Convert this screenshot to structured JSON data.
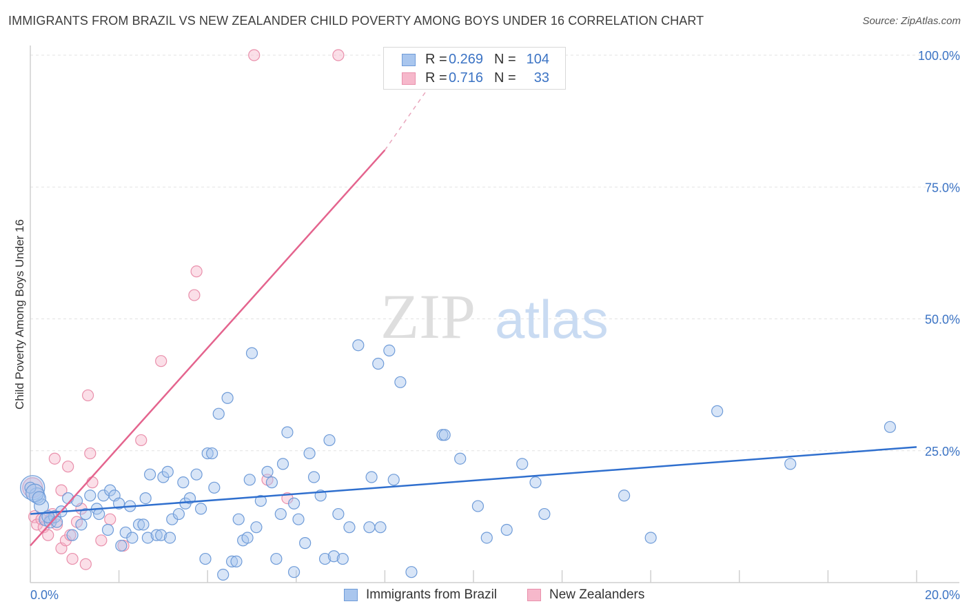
{
  "title": "IMMIGRANTS FROM BRAZIL VS NEW ZEALANDER CHILD POVERTY AMONG BOYS UNDER 16 CORRELATION CHART",
  "source": "Source: ZipAtlas.com",
  "watermark": {
    "zip": "ZIP",
    "atlas": "atlas"
  },
  "colors": {
    "brazil_fill": "#a9c6ee",
    "brazil_stroke": "#6e9bd8",
    "brazil_line": "#2f6fce",
    "nz_fill": "#f6b8cb",
    "nz_stroke": "#e98fab",
    "nz_line": "#e4648e",
    "axis_label": "#3b73c4",
    "grid": "#e2e2e2"
  },
  "legend_top": {
    "rows": [
      {
        "r_label": "R =",
        "r_value": "0.269",
        "n_label": "N =",
        "n_value": "104"
      },
      {
        "r_label": "R =",
        "r_value": "0.716",
        "n_label": "N =",
        "n_value": "33"
      }
    ]
  },
  "chart_data": {
    "type": "scatter",
    "title": "IMMIGRANTS FROM BRAZIL VS NEW ZEALANDER CHILD POVERTY AMONG BOYS UNDER 16 CORRELATION CHART",
    "xlabel": "",
    "ylabel": "Child Poverty Among Boys Under 16",
    "xlim": [
      0,
      20
    ],
    "ylim": [
      0,
      100
    ],
    "x_tick_labels": [
      "0.0%",
      "20.0%"
    ],
    "y_tick_labels": [
      "25.0%",
      "50.0%",
      "75.0%",
      "100.0%"
    ],
    "y_ticks": [
      25,
      50,
      75,
      100
    ],
    "legend": [
      "Immigrants from Brazil",
      "New Zealanders"
    ],
    "series": [
      {
        "name": "Immigrants from Brazil",
        "r": 0.269,
        "n": 104,
        "trend": {
          "x0": 0,
          "y0": 13.0,
          "x1": 20,
          "y1": 25.7
        },
        "points": [
          [
            0.05,
            18.0
          ],
          [
            0.15,
            16.5
          ],
          [
            0.25,
            14.5
          ],
          [
            0.35,
            12.0
          ],
          [
            0.45,
            11.5
          ],
          [
            0.55,
            12.5
          ],
          [
            0.7,
            13.5
          ],
          [
            0.85,
            16.0
          ],
          [
            0.95,
            9.0
          ],
          [
            1.05,
            15.5
          ],
          [
            1.15,
            11.0
          ],
          [
            1.25,
            13.0
          ],
          [
            1.35,
            16.5
          ],
          [
            1.5,
            14.0
          ],
          [
            1.55,
            13.0
          ],
          [
            1.65,
            16.5
          ],
          [
            1.75,
            10.0
          ],
          [
            1.8,
            17.5
          ],
          [
            1.9,
            16.5
          ],
          [
            2.0,
            15.0
          ],
          [
            2.05,
            7.0
          ],
          [
            2.15,
            9.5
          ],
          [
            2.25,
            14.5
          ],
          [
            2.3,
            8.5
          ],
          [
            2.45,
            11.0
          ],
          [
            2.55,
            11.0
          ],
          [
            2.6,
            16.0
          ],
          [
            2.65,
            8.5
          ],
          [
            2.7,
            20.5
          ],
          [
            2.85,
            9.0
          ],
          [
            2.95,
            9.0
          ],
          [
            3.0,
            20.0
          ],
          [
            3.1,
            21.0
          ],
          [
            3.15,
            8.5
          ],
          [
            3.2,
            12.0
          ],
          [
            3.35,
            13.0
          ],
          [
            3.45,
            19.0
          ],
          [
            3.5,
            15.0
          ],
          [
            3.6,
            16.0
          ],
          [
            3.75,
            20.5
          ],
          [
            3.85,
            14.0
          ],
          [
            3.95,
            4.5
          ],
          [
            4.0,
            24.5
          ],
          [
            4.1,
            24.5
          ],
          [
            4.15,
            18.0
          ],
          [
            4.25,
            32.0
          ],
          [
            4.35,
            1.5
          ],
          [
            4.45,
            35.0
          ],
          [
            4.55,
            4.0
          ],
          [
            4.65,
            4.0
          ],
          [
            4.7,
            12.0
          ],
          [
            4.8,
            8.0
          ],
          [
            4.9,
            8.5
          ],
          [
            4.95,
            19.5
          ],
          [
            5.0,
            43.5
          ],
          [
            5.1,
            10.5
          ],
          [
            5.2,
            15.5
          ],
          [
            5.35,
            21.0
          ],
          [
            5.45,
            19.0
          ],
          [
            5.55,
            4.5
          ],
          [
            5.65,
            13.0
          ],
          [
            5.7,
            22.5
          ],
          [
            5.8,
            28.5
          ],
          [
            5.95,
            2.0
          ],
          [
            5.95,
            15.0
          ],
          [
            6.05,
            12.0
          ],
          [
            6.2,
            7.5
          ],
          [
            6.3,
            24.5
          ],
          [
            6.4,
            20.0
          ],
          [
            6.55,
            16.5
          ],
          [
            6.65,
            4.5
          ],
          [
            6.75,
            27.0
          ],
          [
            6.85,
            5.0
          ],
          [
            6.95,
            13.0
          ],
          [
            7.05,
            4.5
          ],
          [
            7.2,
            10.5
          ],
          [
            7.4,
            45.0
          ],
          [
            7.65,
            10.5
          ],
          [
            7.7,
            20.0
          ],
          [
            7.85,
            41.5
          ],
          [
            7.9,
            10.5
          ],
          [
            8.1,
            44.0
          ],
          [
            8.2,
            19.5
          ],
          [
            8.35,
            38.0
          ],
          [
            8.6,
            2.0
          ],
          [
            9.3,
            28.0
          ],
          [
            9.35,
            28.0
          ],
          [
            9.7,
            23.5
          ],
          [
            10.1,
            14.5
          ],
          [
            10.3,
            8.5
          ],
          [
            10.75,
            10.0
          ],
          [
            11.1,
            22.5
          ],
          [
            11.4,
            19.0
          ],
          [
            11.6,
            13.0
          ],
          [
            13.4,
            16.5
          ],
          [
            14.0,
            8.5
          ],
          [
            15.5,
            32.5
          ],
          [
            17.15,
            22.5
          ],
          [
            19.4,
            29.5
          ],
          [
            0.0,
            18.0
          ],
          [
            0.1,
            17.0
          ],
          [
            0.2,
            16.0
          ],
          [
            0.4,
            12.5
          ],
          [
            0.6,
            11.5
          ]
        ],
        "sizes": [
          2.2,
          1.4,
          1.3,
          1.2,
          1.1,
          1.1,
          1.0,
          1.0,
          1.0,
          1.0,
          1.0,
          1.0,
          1.0,
          1.0,
          1.0,
          1.0,
          1.0,
          1.0,
          1.0,
          1.0,
          1.0,
          1.0,
          1.0,
          1.0,
          1.0,
          1.0,
          1.0,
          1.0,
          1.0,
          1.0,
          1.0,
          1.0,
          1.0,
          1.0,
          1.0,
          1.0,
          1.0,
          1.0,
          1.0,
          1.0,
          1.0,
          1.0,
          1.0,
          1.0,
          1.0,
          1.0,
          1.0,
          1.0,
          1.0,
          1.0,
          1.0,
          1.0,
          1.0,
          1.0,
          1.0,
          1.0,
          1.0,
          1.0,
          1.0,
          1.0,
          1.0,
          1.0,
          1.0,
          1.0,
          1.0,
          1.0,
          1.0,
          1.0,
          1.0,
          1.0,
          1.0,
          1.0,
          1.0,
          1.0,
          1.0,
          1.0,
          1.0,
          1.0,
          1.0,
          1.0,
          1.0,
          1.0,
          1.0,
          1.0,
          1.0,
          1.0,
          1.0,
          1.0,
          1.0,
          1.0,
          1.0,
          1.0,
          1.0,
          1.0,
          1.0,
          1.0,
          1.0,
          1.0,
          1.0,
          1.0,
          1.6,
          1.2,
          1.1,
          1.0
        ]
      },
      {
        "name": "New Zealanders",
        "r": 0.716,
        "n": 33,
        "trend": {
          "x0": 0,
          "y0": 7.0,
          "x1": 8.0,
          "y1": 82.0,
          "dash_to_x": 9.5,
          "dash_to_y": 100.0
        },
        "points": [
          [
            0.05,
            18.0
          ],
          [
            0.1,
            12.5
          ],
          [
            0.15,
            11.0
          ],
          [
            0.25,
            12.0
          ],
          [
            0.3,
            10.5
          ],
          [
            0.4,
            9.0
          ],
          [
            0.5,
            13.0
          ],
          [
            0.55,
            23.5
          ],
          [
            0.6,
            11.0
          ],
          [
            0.7,
            17.5
          ],
          [
            0.7,
            6.5
          ],
          [
            0.8,
            8.0
          ],
          [
            0.85,
            22.0
          ],
          [
            0.9,
            9.0
          ],
          [
            0.95,
            4.5
          ],
          [
            1.05,
            11.5
          ],
          [
            1.15,
            14.0
          ],
          [
            1.25,
            3.5
          ],
          [
            1.3,
            35.5
          ],
          [
            1.35,
            24.5
          ],
          [
            1.4,
            19.0
          ],
          [
            1.6,
            8.0
          ],
          [
            1.8,
            12.0
          ],
          [
            2.1,
            7.0
          ],
          [
            2.5,
            27.0
          ],
          [
            2.95,
            42.0
          ],
          [
            3.7,
            54.5
          ],
          [
            3.75,
            59.0
          ],
          [
            5.05,
            100.0
          ],
          [
            5.35,
            19.5
          ],
          [
            5.8,
            16.0
          ],
          [
            6.95,
            100.0
          ],
          [
            0.45,
            12.0
          ]
        ],
        "sizes": [
          1.8,
          1.1,
          1.0,
          1.0,
          1.0,
          1.0,
          1.0,
          1.0,
          1.0,
          1.0,
          1.0,
          1.0,
          1.0,
          1.0,
          1.0,
          1.0,
          1.0,
          1.0,
          1.0,
          1.0,
          1.0,
          1.0,
          1.0,
          1.0,
          1.0,
          1.0,
          1.0,
          1.0,
          1.0,
          1.0,
          1.0,
          1.0,
          1.0
        ]
      }
    ]
  }
}
